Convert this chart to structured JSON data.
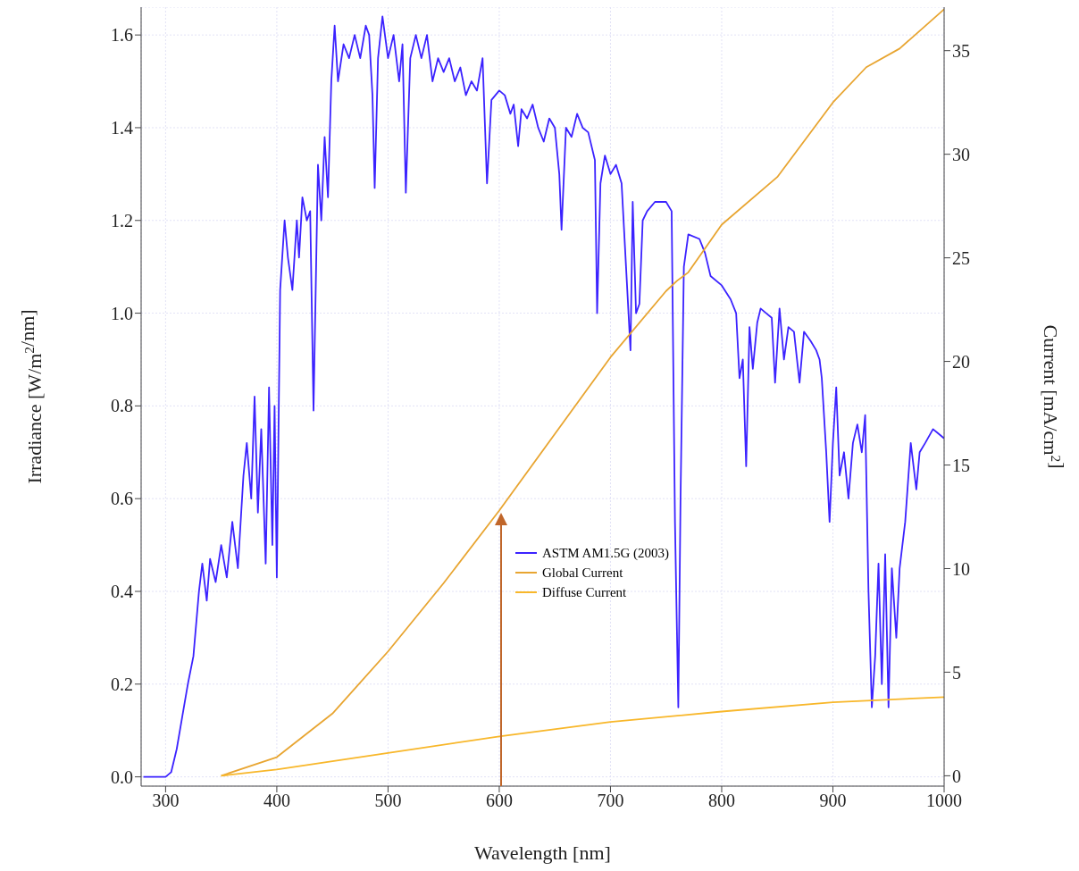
{
  "chart_data": {
    "type": "line",
    "xlabel": "Wavelength [nm]",
    "ylabel": "Irradiance [W/m$^{2}$/nm]",
    "y2label": "Current [mA/cm$^{2}$]",
    "xlim": [
      278,
      1000
    ],
    "xticks": [
      300,
      400,
      500,
      600,
      700,
      800,
      900,
      1000
    ],
    "ylim": [
      -0.02,
      1.66
    ],
    "yticks": [
      {
        "value": 0,
        "label": "0.0"
      },
      {
        "value": 0.2,
        "label": "0.2"
      },
      {
        "value": 0.4,
        "label": "0.4"
      },
      {
        "value": 0.6,
        "label": "0.6"
      },
      {
        "value": 0.8,
        "label": "0.8"
      },
      {
        "value": 1.0,
        "label": "1.0"
      },
      {
        "value": 1.2,
        "label": "1.2"
      },
      {
        "value": 1.4,
        "label": "1.4"
      },
      {
        "value": 1.6,
        "label": "1.6"
      }
    ],
    "y2lim": [
      -0.5,
      37.1
    ],
    "y2ticks": [
      0,
      5,
      10,
      15,
      20,
      25,
      30,
      35
    ],
    "grid": true,
    "legend": "bottom",
    "marker": "none",
    "line_style": "solid",
    "series": [
      {
        "name": "ASTM AM1.5G (2003)",
        "color": "#3b22ff",
        "x": [
          280,
          300,
          305,
          310,
          315,
          320,
          325,
          330,
          333,
          337,
          340,
          345,
          350,
          355,
          360,
          365,
          370,
          373,
          377,
          380,
          383,
          386,
          390,
          393,
          396,
          398,
          400,
          403,
          407,
          410,
          414,
          418,
          420,
          423,
          427,
          430,
          433,
          437,
          440,
          443,
          446,
          449,
          452,
          455,
          460,
          465,
          470,
          475,
          480,
          483,
          486,
          488,
          491,
          495,
          500,
          505,
          510,
          513,
          516,
          520,
          525,
          530,
          535,
          540,
          545,
          550,
          555,
          560,
          565,
          570,
          575,
          580,
          585,
          589,
          593,
          600,
          605,
          610,
          613,
          617,
          620,
          625,
          630,
          635,
          640,
          645,
          650,
          654,
          656,
          660,
          665,
          670,
          675,
          680,
          686,
          688,
          691,
          695,
          700,
          705,
          710,
          714,
          718,
          720,
          723,
          726,
          729,
          733,
          740,
          750,
          755,
          758,
          761,
          763,
          766,
          770,
          780,
          785,
          790,
          800,
          808,
          813,
          816,
          819,
          822,
          825,
          828,
          832,
          835,
          840,
          845,
          848,
          852,
          856,
          860,
          865,
          870,
          874,
          880,
          885,
          888,
          890,
          894,
          897,
          900,
          903,
          906,
          910,
          914,
          918,
          922,
          926,
          929,
          932,
          935,
          938,
          941,
          944,
          947,
          950,
          953,
          957,
          960,
          965,
          970,
          975,
          978,
          983,
          990,
          995,
          1000
        ],
        "values": [
          0,
          0,
          0.01,
          0.06,
          0.13,
          0.2,
          0.26,
          0.4,
          0.46,
          0.38,
          0.47,
          0.42,
          0.5,
          0.43,
          0.55,
          0.45,
          0.65,
          0.72,
          0.6,
          0.82,
          0.57,
          0.75,
          0.46,
          0.84,
          0.5,
          0.8,
          0.43,
          1.05,
          1.2,
          1.12,
          1.05,
          1.2,
          1.12,
          1.25,
          1.2,
          1.22,
          0.79,
          1.32,
          1.2,
          1.38,
          1.25,
          1.5,
          1.62,
          1.5,
          1.58,
          1.55,
          1.6,
          1.55,
          1.62,
          1.6,
          1.47,
          1.27,
          1.55,
          1.64,
          1.55,
          1.6,
          1.5,
          1.58,
          1.26,
          1.55,
          1.6,
          1.55,
          1.6,
          1.5,
          1.55,
          1.52,
          1.55,
          1.5,
          1.53,
          1.47,
          1.5,
          1.48,
          1.55,
          1.28,
          1.46,
          1.48,
          1.47,
          1.43,
          1.45,
          1.36,
          1.44,
          1.42,
          1.45,
          1.4,
          1.37,
          1.42,
          1.4,
          1.3,
          1.18,
          1.4,
          1.38,
          1.43,
          1.4,
          1.39,
          1.33,
          1.0,
          1.28,
          1.34,
          1.3,
          1.32,
          1.28,
          1.1,
          0.92,
          1.24,
          1.0,
          1.02,
          1.2,
          1.22,
          1.24,
          1.24,
          1.22,
          0.55,
          0.15,
          0.6,
          1.1,
          1.17,
          1.16,
          1.13,
          1.08,
          1.06,
          1.03,
          1.0,
          0.86,
          0.9,
          0.67,
          0.97,
          0.88,
          0.98,
          1.01,
          1.0,
          0.99,
          0.85,
          1.01,
          0.9,
          0.97,
          0.96,
          0.85,
          0.96,
          0.94,
          0.92,
          0.9,
          0.86,
          0.7,
          0.55,
          0.72,
          0.84,
          0.65,
          0.7,
          0.6,
          0.72,
          0.76,
          0.7,
          0.78,
          0.4,
          0.15,
          0.26,
          0.46,
          0.2,
          0.48,
          0.15,
          0.45,
          0.3,
          0.45,
          0.55,
          0.72,
          0.62,
          0.7,
          0.72,
          0.75,
          0.74,
          0.73
        ]
      },
      {
        "name": "Global Current",
        "color": "#e8a531",
        "axis": "y2",
        "x": [
          350,
          400,
          450,
          500,
          550,
          600,
          650,
          700,
          750,
          760,
          770,
          800,
          850,
          900,
          930,
          960,
          1000
        ],
        "values": [
          0,
          0.9,
          3,
          6,
          9.3,
          12.8,
          16.5,
          20.2,
          23.4,
          23.9,
          24.3,
          26.6,
          28.9,
          32.5,
          34.2,
          35.1,
          37
        ]
      },
      {
        "name": "Diffuse Current",
        "color": "#f8b72a",
        "axis": "y2",
        "x": [
          350,
          400,
          500,
          600,
          700,
          800,
          900,
          1000
        ],
        "values": [
          0,
          0.3,
          1.1,
          1.9,
          2.6,
          3.1,
          3.55,
          3.8
        ]
      }
    ]
  }
}
